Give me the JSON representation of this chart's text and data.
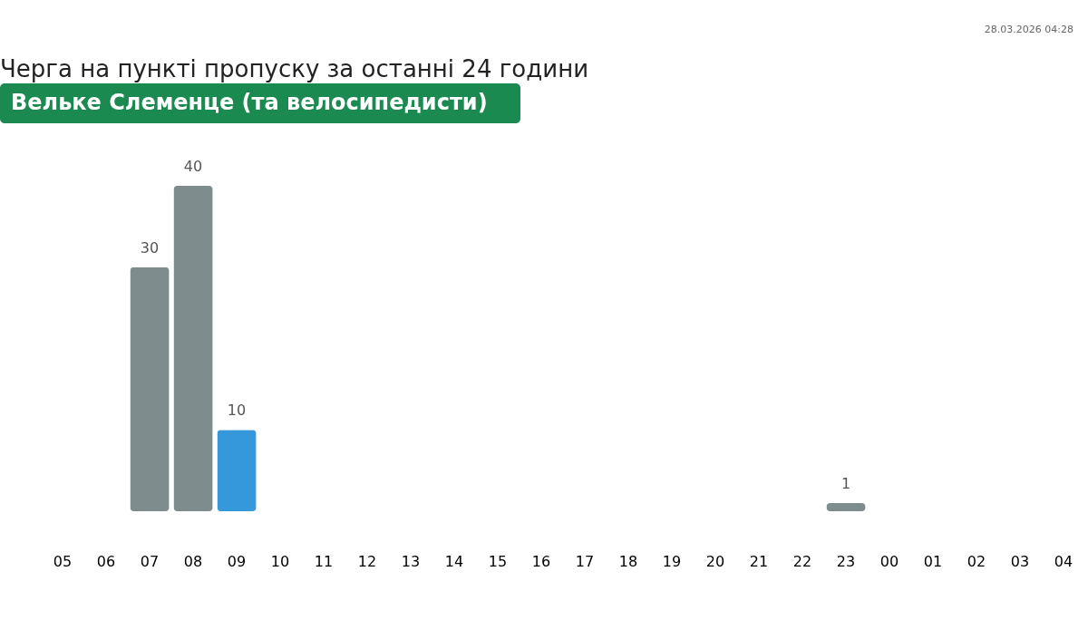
{
  "chart_data": {
    "type": "bar",
    "title": "Черга на пункті пропуску за останні 24 години",
    "subtitle": "Вельке Слеменце (та велосипедисти)",
    "annotations": [
      "28.03.2026 04:28"
    ],
    "categories": [
      "05",
      "06",
      "07",
      "08",
      "09",
      "10",
      "11",
      "12",
      "13",
      "14",
      "15",
      "16",
      "17",
      "18",
      "19",
      "20",
      "21",
      "22",
      "23",
      "00",
      "01",
      "02",
      "03",
      "04"
    ],
    "values": [
      null,
      null,
      30,
      40,
      10,
      null,
      null,
      null,
      null,
      null,
      null,
      null,
      null,
      null,
      null,
      null,
      null,
      null,
      1,
      null,
      null,
      null,
      null,
      null
    ],
    "colors": [
      null,
      null,
      "#7f8c8d",
      "#7f8c8d",
      "#3498db",
      null,
      null,
      null,
      null,
      null,
      null,
      null,
      null,
      null,
      null,
      null,
      null,
      null,
      "#7f8c8d",
      null,
      null,
      null,
      null,
      null
    ],
    "data_labels": true,
    "tick_labels": "x"
  }
}
